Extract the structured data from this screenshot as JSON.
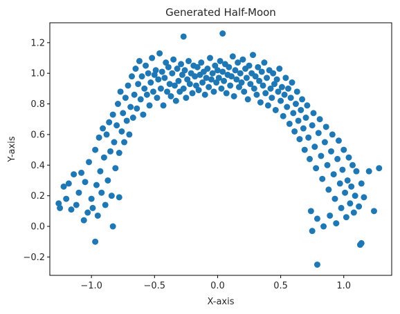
{
  "chart_data": {
    "type": "scatter",
    "title": "Generated Half-Moon",
    "xlabel": "X-axis",
    "ylabel": "Y-axis",
    "xlim": [
      -1.33,
      1.38
    ],
    "ylim": [
      -0.32,
      1.33
    ],
    "xticks": [
      -1.0,
      -0.5,
      0.0,
      0.5,
      1.0
    ],
    "xtick_labels": [
      "−1.0",
      "−0.5",
      "0.0",
      "0.5",
      "1.0"
    ],
    "yticks": [
      -0.2,
      0.0,
      0.2,
      0.4,
      0.6,
      0.8,
      1.0,
      1.2
    ],
    "ytick_labels": [
      "−0.2",
      "0.0",
      "0.2",
      "0.4",
      "0.6",
      "0.8",
      "1.0",
      "1.2"
    ],
    "grid": false,
    "marker_color": "#1f77b4",
    "series": [
      {
        "x": [
          -1.26,
          -1.25,
          -1.22,
          -1.2,
          -1.18,
          -1.16,
          -1.14,
          -1.12,
          -1.1,
          -1.08,
          -1.06,
          -1.05,
          -1.03,
          -1.02,
          -1.0,
          -0.99,
          -0.97,
          -0.96,
          -0.95,
          -0.94,
          -0.93,
          -0.92,
          -0.91,
          -0.9,
          -0.89,
          -0.88,
          -0.87,
          -0.86,
          -0.85,
          -0.84,
          -0.83,
          -0.82,
          -0.81,
          -0.8,
          -0.79,
          -0.78,
          -0.77,
          -0.76,
          -0.75,
          -0.74,
          -0.73,
          -0.72,
          -0.71,
          -0.7,
          -0.69,
          -0.68,
          -0.67,
          -0.66,
          -0.65,
          -0.64,
          -0.63,
          -0.62,
          -0.61,
          -0.6,
          -0.59,
          -0.58,
          -0.57,
          -0.56,
          -0.55,
          -0.54,
          -0.53,
          -0.52,
          -0.51,
          -0.5,
          -0.49,
          -0.48,
          -0.47,
          -0.46,
          -0.45,
          -0.44,
          -0.43,
          -0.42,
          -0.41,
          -0.4,
          -0.39,
          -0.38,
          -0.37,
          -0.36,
          -0.35,
          -0.34,
          -0.33,
          -0.32,
          -0.31,
          -0.3,
          -0.29,
          -0.28,
          -0.27,
          -0.26,
          -0.25,
          -0.24,
          -0.23,
          -0.22,
          -0.21,
          -0.2,
          -0.19,
          -0.18,
          -0.17,
          -0.16,
          -0.15,
          -0.14,
          -0.13,
          -0.12,
          -0.11,
          -0.1,
          -0.09,
          -0.08,
          -0.07,
          -0.06,
          -0.05,
          -0.04,
          -0.03,
          -0.02,
          -0.01,
          0.0,
          0.01,
          0.02,
          0.03,
          0.04,
          0.05,
          0.06,
          0.07,
          0.08,
          0.09,
          0.1,
          0.11,
          0.12,
          0.13,
          0.14,
          0.15,
          0.16,
          0.17,
          0.18,
          0.19,
          0.2,
          0.21,
          0.22,
          0.23,
          0.24,
          0.25,
          0.26,
          0.27,
          0.28,
          0.29,
          0.3,
          0.31,
          0.32,
          0.33,
          0.34,
          0.35,
          0.36,
          0.37,
          0.38,
          0.39,
          0.4,
          0.41,
          0.42,
          0.43,
          0.44,
          0.45,
          0.46,
          0.47,
          0.48,
          0.49,
          0.5,
          0.51,
          0.52,
          0.53,
          0.54,
          0.55,
          0.56,
          0.57,
          0.58,
          0.59,
          0.6,
          0.61,
          0.62,
          0.63,
          0.64,
          0.65,
          0.66,
          0.67,
          0.68,
          0.69,
          0.7,
          0.71,
          0.72,
          0.73,
          0.74,
          0.75,
          0.76,
          0.77,
          0.78,
          0.79,
          0.8,
          0.81,
          0.82,
          0.83,
          0.84,
          0.85,
          0.86,
          0.87,
          0.88,
          0.89,
          0.9,
          0.91,
          0.92,
          0.93,
          0.94,
          0.95,
          0.96,
          0.97,
          0.98,
          0.99,
          1.0,
          1.01,
          1.02,
          1.03,
          1.04,
          1.05,
          1.06,
          1.07,
          1.08,
          1.09,
          1.1,
          1.12,
          1.14,
          1.16,
          1.2,
          1.24,
          1.28,
          -0.27,
          0.04,
          0.79,
          1.14,
          -0.97,
          -0.83,
          -0.78,
          0.75,
          1.13
        ],
        "y": [
          0.15,
          0.12,
          0.26,
          0.18,
          0.28,
          0.11,
          0.34,
          0.14,
          0.22,
          0.35,
          0.04,
          0.29,
          0.09,
          0.42,
          0.18,
          0.12,
          0.5,
          0.27,
          0.07,
          0.58,
          0.36,
          0.22,
          0.64,
          0.45,
          0.14,
          0.6,
          0.3,
          0.68,
          0.49,
          0.2,
          0.73,
          0.55,
          0.38,
          0.66,
          0.8,
          0.48,
          0.88,
          0.62,
          0.74,
          0.55,
          0.84,
          0.69,
          0.92,
          0.6,
          0.78,
          0.98,
          0.71,
          0.86,
          1.03,
          0.77,
          0.93,
          1.08,
          0.83,
          0.98,
          0.73,
          0.9,
          1.05,
          0.86,
          1.0,
          0.79,
          0.94,
          1.1,
          0.88,
          0.99,
          1.02,
          0.84,
          0.96,
          1.13,
          0.9,
          1.01,
          0.79,
          0.97,
          1.07,
          0.88,
          1.04,
          0.93,
          0.85,
          1.0,
          1.09,
          0.92,
          0.82,
          1.03,
          0.95,
          0.88,
          1.06,
          0.99,
          0.9,
          1.02,
          0.84,
          0.96,
          1.08,
          0.93,
          1.0,
          0.87,
          1.05,
          0.98,
          0.92,
          1.04,
          0.89,
          0.99,
          1.07,
          0.94,
          1.01,
          0.86,
          0.97,
          1.03,
          0.91,
          1.1,
          0.96,
          1.0,
          0.88,
          1.05,
          0.94,
          1.02,
          0.97,
          1.08,
          0.9,
          1.01,
          0.95,
          1.06,
          0.87,
          0.99,
          1.04,
          0.92,
          0.98,
          1.11,
          0.85,
          1.02,
          0.96,
          1.07,
          0.91,
          1.0,
          0.94,
          1.09,
          0.88,
          1.03,
          0.97,
          0.83,
          1.05,
          0.93,
          1.0,
          1.12,
          0.9,
          0.98,
          0.86,
          1.04,
          0.95,
          0.81,
          1.01,
          0.92,
          1.07,
          0.87,
          0.97,
          0.79,
          1.02,
          0.9,
          0.84,
          1.0,
          0.93,
          0.76,
          0.96,
          0.88,
          1.03,
          0.82,
          0.91,
          0.72,
          0.86,
          0.97,
          0.78,
          0.9,
          0.67,
          0.84,
          0.94,
          0.74,
          0.62,
          0.8,
          0.88,
          0.69,
          0.57,
          0.76,
          0.83,
          0.64,
          0.5,
          0.71,
          0.79,
          0.58,
          0.44,
          0.1,
          0.66,
          0.74,
          0.52,
          0.38,
          0.05,
          0.61,
          0.7,
          0.46,
          0.31,
          0.0,
          0.55,
          0.65,
          0.4,
          0.24,
          0.07,
          0.49,
          0.6,
          0.34,
          0.18,
          0.02,
          0.44,
          0.56,
          0.28,
          0.12,
          0.37,
          0.5,
          0.22,
          0.06,
          0.3,
          0.45,
          0.15,
          0.26,
          0.4,
          0.09,
          0.2,
          0.36,
          0.13,
          0.28,
          0.19,
          0.36,
          0.1,
          0.38,
          1.24,
          1.26,
          -0.25,
          -0.11,
          -0.1,
          0.0,
          0.19,
          -0.03,
          -0.12
        ]
      }
    ]
  }
}
